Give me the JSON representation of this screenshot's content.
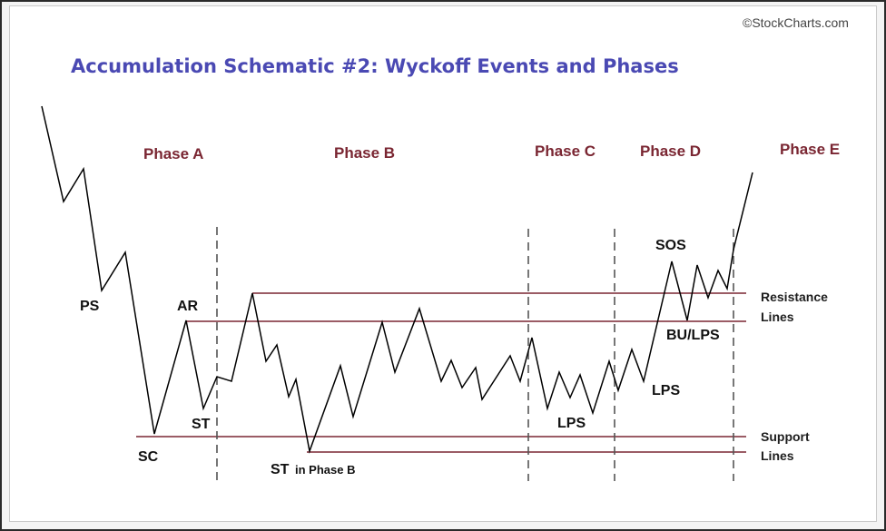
{
  "title": "Accumulation Schematic #2: Wyckoff Events and Phases",
  "credit": "©StockCharts.com",
  "phases": [
    "Phase A",
    "Phase B",
    "Phase C",
    "Phase D",
    "Phase E"
  ],
  "events": {
    "ps": "PS",
    "sc": "SC",
    "ar": "AR",
    "st": "ST",
    "st_phase_b": "ST",
    "st_phase_b_suffix": "in Phase B",
    "lps_c": "LPS",
    "lps_d": "LPS",
    "sos": "SOS",
    "bu_lps": "BU/LPS"
  },
  "line_labels": {
    "resistance": [
      "Resistance",
      "Lines"
    ],
    "support": [
      "Support",
      "Lines"
    ]
  },
  "colors": {
    "title": "#4a49b3",
    "phase_labels": "#7a2632",
    "support_resistance_lines": "#7a2632",
    "phase_dividers": "#555555",
    "price_path": "#000000"
  }
}
